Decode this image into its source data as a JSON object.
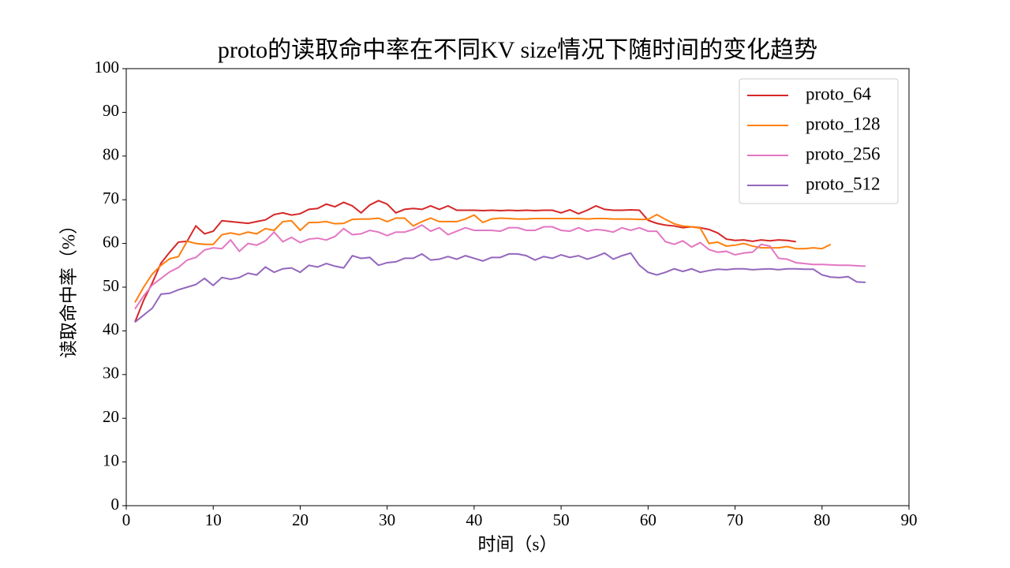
{
  "chart_data": {
    "type": "line",
    "title": "proto的读取命中率在不同KV size情况下随时间的变化趋势",
    "x_label": "时间（s）",
    "y_label": "读取命中率（%）",
    "xlim": [
      0,
      90
    ],
    "xticks": [
      0,
      10,
      20,
      30,
      40,
      50,
      60,
      70,
      80,
      90
    ],
    "ylim": [
      0,
      100
    ],
    "yticks": [
      0,
      10,
      20,
      30,
      40,
      50,
      60,
      70,
      80,
      90,
      100
    ],
    "legend": "upper right",
    "x": [
      1,
      2,
      3,
      4,
      5,
      6,
      7,
      8,
      9,
      10,
      11,
      12,
      13,
      14,
      15,
      16,
      17,
      18,
      19,
      20,
      21,
      22,
      23,
      24,
      25,
      26,
      27,
      28,
      29,
      30,
      31,
      32,
      33,
      34,
      35,
      36,
      37,
      38,
      39,
      40,
      41,
      42,
      43,
      44,
      45,
      46,
      47,
      48,
      49,
      50,
      51,
      52,
      53,
      54,
      55,
      56,
      57,
      58,
      59,
      60,
      61,
      62,
      63,
      64,
      65,
      66,
      67,
      68,
      69,
      70,
      71,
      72,
      73,
      74,
      75,
      76,
      77,
      78,
      79,
      80,
      81,
      82,
      83,
      84,
      85
    ],
    "series": [
      {
        "name": "proto_64",
        "color": "#d62728",
        "values": [
          42,
          47,
          51,
          55.5,
          58,
          60.3,
          60.5,
          64,
          62.2,
          62.8,
          65.2,
          65,
          64.8,
          64.6,
          65,
          65.4,
          66.6,
          67,
          66.5,
          66.8,
          67.8,
          68,
          69,
          68.4,
          69.4,
          68.6,
          67,
          68.8,
          69.8,
          69,
          67,
          67.8,
          68,
          67.8,
          68.6,
          67.8,
          68.6,
          67.6,
          67.6,
          67.6,
          67.5,
          67.6,
          67.5,
          67.6,
          67.5,
          67.6,
          67.5,
          67.6,
          67.6,
          67,
          67.7,
          66.8,
          67.6,
          68.6,
          67.8,
          67.6,
          67.6,
          67.7,
          67.6,
          65.3,
          64.6,
          64.2,
          64,
          63.6,
          63.8,
          63.6,
          63.2,
          62.4,
          61,
          60.7,
          60.8,
          60.5,
          60.8,
          60.6,
          60.8,
          60.7,
          60.4,
          null,
          null,
          null,
          null,
          null,
          null,
          null,
          null
        ]
      },
      {
        "name": "proto_128",
        "color": "#ff7f0e",
        "values": [
          46.5,
          50,
          53,
          55,
          56.5,
          57,
          60.5,
          60,
          59.8,
          59.8,
          62,
          62.4,
          62,
          62.6,
          62.2,
          63.4,
          63,
          65,
          65.2,
          63,
          64.8,
          64.8,
          65,
          64.5,
          64.6,
          65.5,
          65.6,
          65.6,
          65.8,
          65,
          65.8,
          65.8,
          64,
          65,
          65.8,
          65,
          65,
          65,
          65.6,
          66.5,
          64.8,
          65.6,
          65.8,
          65.7,
          65.6,
          65.6,
          65.7,
          65.7,
          65.7,
          65.7,
          65.7,
          65.7,
          65.6,
          65.7,
          65.7,
          65.6,
          65.6,
          65.6,
          65.5,
          65.5,
          66.6,
          65.5,
          64.5,
          64,
          63.8,
          63.5,
          60,
          60.3,
          59.4,
          59.6,
          60,
          59.4,
          59,
          59,
          59,
          59.3,
          58.8,
          58.8,
          59,
          58.8,
          59.8,
          null,
          null,
          null,
          null
        ]
      },
      {
        "name": "proto_256",
        "color": "#e377c2",
        "values": [
          45,
          48,
          50.5,
          52,
          53.5,
          54.5,
          56.2,
          56.8,
          58.5,
          59,
          58.8,
          60.8,
          58.2,
          60,
          59.6,
          60.6,
          62.6,
          60.4,
          61.4,
          60.2,
          61,
          61.2,
          60.8,
          61.6,
          63.4,
          62,
          62.2,
          63,
          62.6,
          61.8,
          62.6,
          62.6,
          63.2,
          64.2,
          62.8,
          63.6,
          62,
          62.8,
          63.6,
          63,
          63,
          63,
          62.8,
          63.6,
          63.6,
          63,
          63,
          63.8,
          63.8,
          63,
          62.8,
          63.6,
          62.8,
          63.2,
          63,
          62.6,
          63.6,
          63,
          63.6,
          62.8,
          62.8,
          60.4,
          59.8,
          60.6,
          59.2,
          60.2,
          58.6,
          58,
          58.2,
          57.4,
          57.8,
          58,
          59.8,
          59.4,
          56.6,
          56.4,
          55.6,
          55.4,
          55.2,
          55.2,
          55.1,
          55,
          55,
          54.9,
          54.8
        ]
      },
      {
        "name": "proto_512",
        "color": "#9467bd",
        "values": [
          42,
          43.6,
          45.2,
          48.4,
          48.6,
          49.4,
          50,
          50.6,
          52,
          50.4,
          52.2,
          51.8,
          52.2,
          53.2,
          52.8,
          54.6,
          53.4,
          54.2,
          54.4,
          53.4,
          55,
          54.6,
          55.4,
          54.8,
          54.4,
          57.2,
          56.6,
          56.8,
          55,
          55.6,
          55.8,
          56.6,
          56.6,
          57.6,
          56.2,
          56.4,
          57,
          56.4,
          57.2,
          56.6,
          56,
          56.8,
          56.8,
          57.6,
          57.6,
          57.2,
          56.2,
          57,
          56.6,
          57.4,
          56.8,
          57.2,
          56.4,
          57,
          57.8,
          56.4,
          57.2,
          57.8,
          55,
          53.4,
          52.8,
          53.4,
          54.2,
          53.6,
          54.2,
          53.4,
          53.8,
          54.1,
          54,
          54.2,
          54.2,
          54,
          54.1,
          54.2,
          54,
          54.2,
          54.2,
          54.1,
          54.1,
          52.8,
          52.3,
          52.2,
          52.4,
          51.2,
          51.1
        ]
      }
    ]
  }
}
